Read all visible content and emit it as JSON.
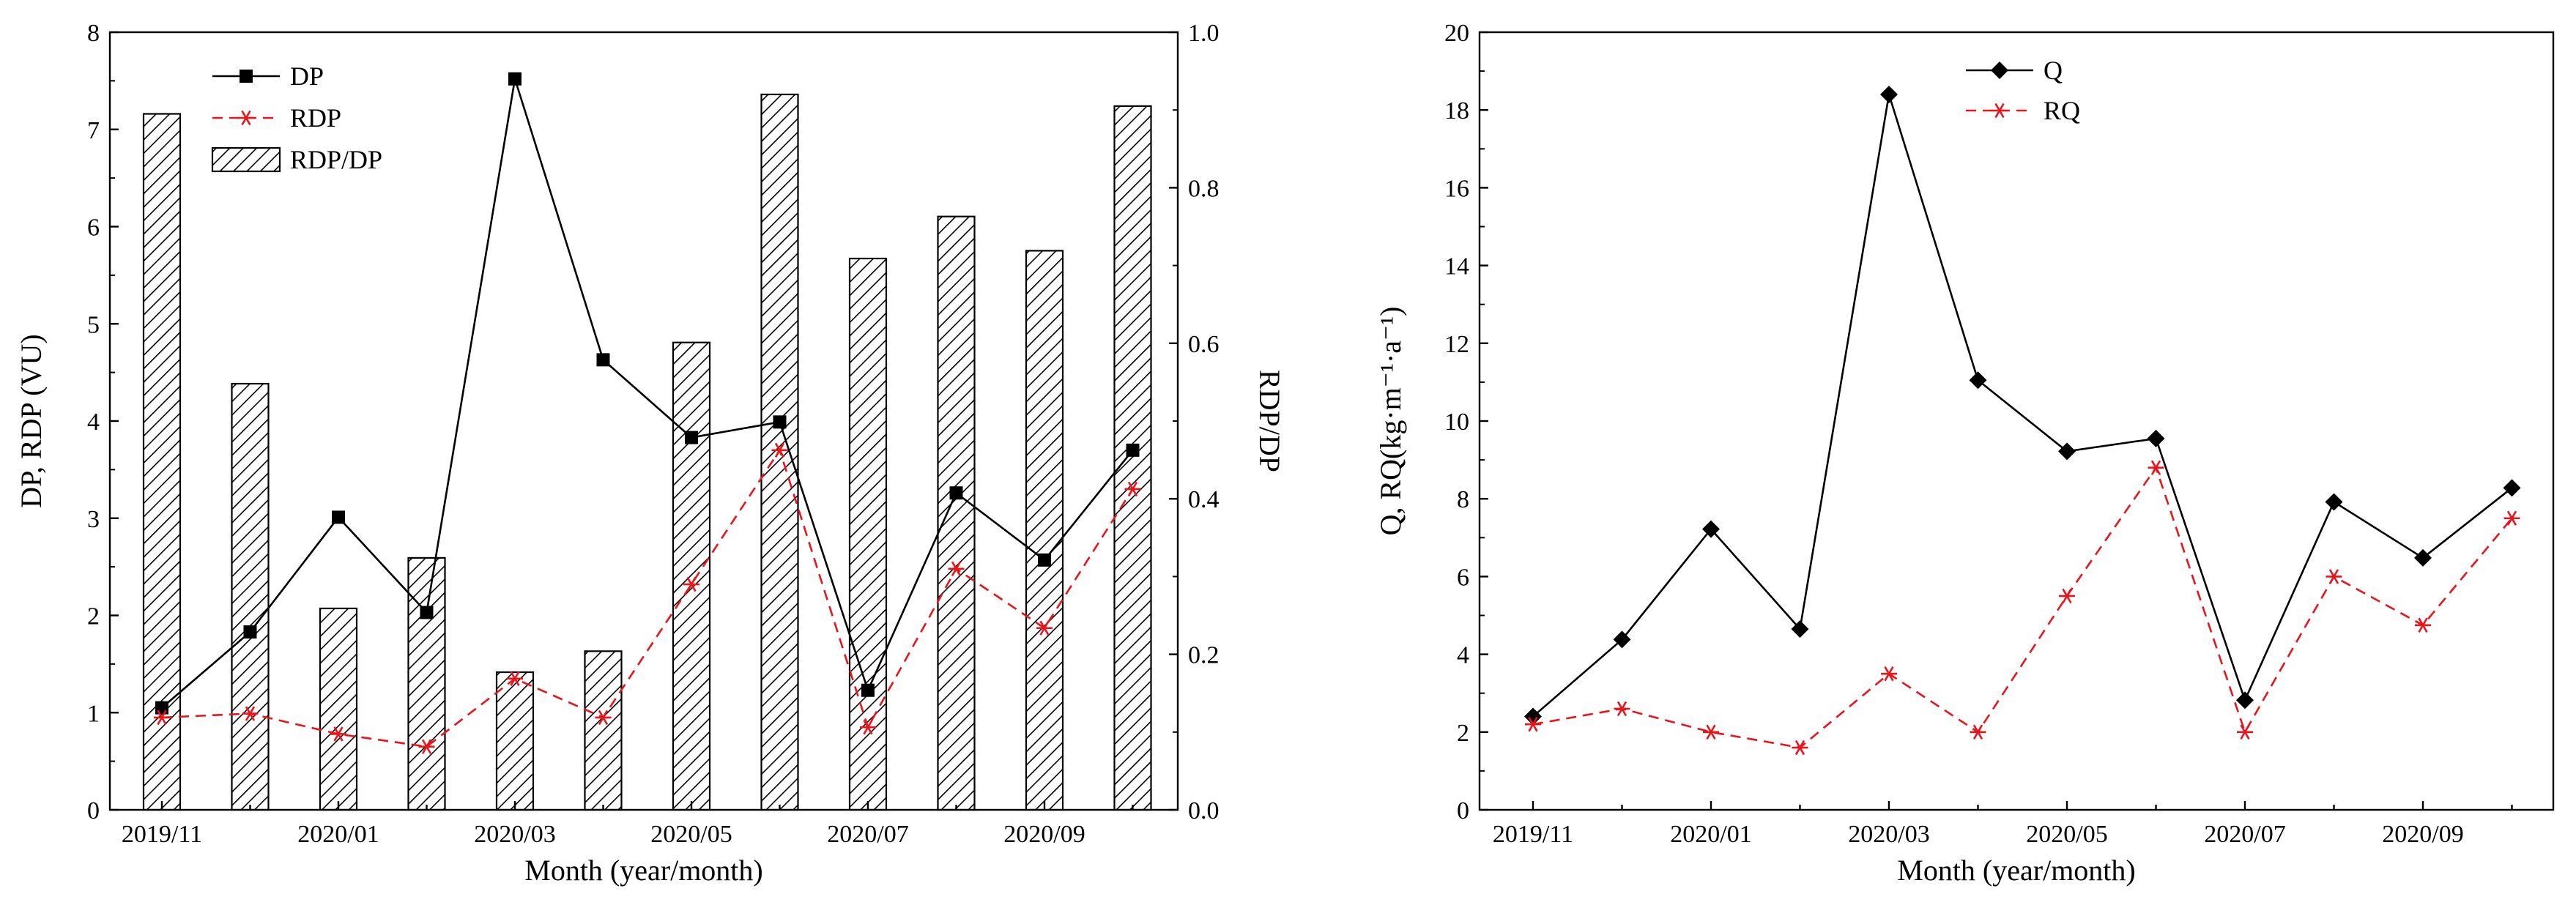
{
  "chart_data": [
    {
      "type": "bar+line",
      "title": "",
      "xlabel": "Month (year/month)",
      "ylabel": "DP, RDP (VU)",
      "ylabel_right": "RDP/DP",
      "categories": [
        "2019/11",
        "2019/12",
        "2020/01",
        "2020/02",
        "2020/03",
        "2020/04",
        "2020/05",
        "2020/06",
        "2020/07",
        "2020/08",
        "2020/09",
        "2020/10"
      ],
      "x_tick_labels": [
        "2019/11",
        "2020/01",
        "2020/03",
        "2020/05",
        "2020/07",
        "2020/09"
      ],
      "ylim": [
        0,
        8
      ],
      "y_ticks": [
        "0",
        "1",
        "2",
        "3",
        "4",
        "5",
        "6",
        "7",
        "8"
      ],
      "ylim_right": [
        0,
        1.0
      ],
      "y_ticks_right": [
        "0.0",
        "0.2",
        "0.4",
        "0.6",
        "0.8",
        "1.0"
      ],
      "legend_position": "top-left",
      "series": [
        {
          "name": "DP",
          "kind": "line",
          "axis": "left",
          "marker": "square",
          "color": "#000000",
          "values": [
            1.05,
            1.83,
            3.01,
            2.03,
            7.52,
            4.63,
            3.83,
            3.99,
            1.23,
            3.26,
            2.57,
            3.7
          ]
        },
        {
          "name": "RDP",
          "kind": "line",
          "axis": "left",
          "marker": "asterisk",
          "dash": true,
          "color": "#e8151b",
          "values": [
            0.95,
            0.99,
            0.78,
            0.65,
            1.35,
            0.95,
            2.32,
            3.7,
            0.85,
            2.48,
            1.87,
            3.3
          ]
        },
        {
          "name": "RDP/DP",
          "kind": "bar",
          "axis": "right",
          "pattern": "hatched",
          "values": [
            0.895,
            0.548,
            0.259,
            0.324,
            0.177,
            0.204,
            0.601,
            0.92,
            0.709,
            0.763,
            0.719,
            0.905
          ]
        }
      ]
    },
    {
      "type": "line",
      "title": "",
      "xlabel": "Month (year/month)",
      "ylabel": "Q, RQ(kg·m⁻¹·a⁻¹)",
      "categories": [
        "2019/11",
        "2019/12",
        "2020/01",
        "2020/02",
        "2020/03",
        "2020/04",
        "2020/05",
        "2020/06",
        "2020/07",
        "2020/08",
        "2020/09",
        "2020/10"
      ],
      "x_tick_labels": [
        "2019/11",
        "2020/01",
        "2020/03",
        "2020/05",
        "2020/07",
        "2020/09"
      ],
      "ylim": [
        0,
        20
      ],
      "y_ticks": [
        "0",
        "2",
        "4",
        "6",
        "8",
        "10",
        "12",
        "14",
        "16",
        "18",
        "20"
      ],
      "legend_position": "top-left",
      "series": [
        {
          "name": "Q",
          "kind": "line",
          "marker": "diamond",
          "color": "#000000",
          "values": [
            2.4,
            4.38,
            7.22,
            4.65,
            18.4,
            11.05,
            9.22,
            9.55,
            2.82,
            7.92,
            6.48,
            8.28
          ]
        },
        {
          "name": "RQ",
          "kind": "line",
          "marker": "asterisk",
          "dash": true,
          "color": "#e8151b",
          "values": [
            2.2,
            2.6,
            2.0,
            1.6,
            3.5,
            2.0,
            5.5,
            8.8,
            2.0,
            6.0,
            4.75,
            7.5
          ]
        }
      ]
    }
  ]
}
